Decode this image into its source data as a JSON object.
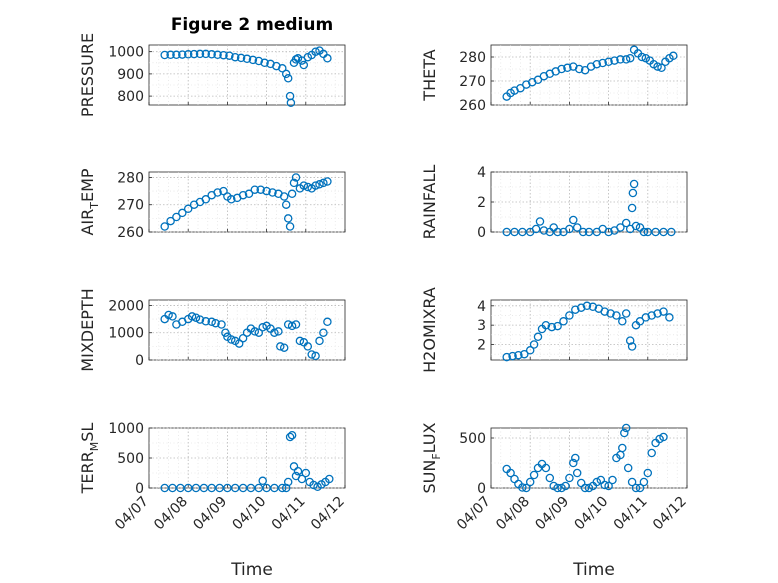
{
  "figure": {
    "title": "Figure 2 medium",
    "marker_color": "#0072BD",
    "x_label": "Time",
    "x_ticks": [
      "04/07",
      "04/08",
      "04/09",
      "04/10",
      "04/11",
      "04/12"
    ]
  },
  "chart_data": [
    {
      "type": "scatter",
      "ylabel": "PRESSURE",
      "ylabel_sub": "",
      "ylabel_rest": "",
      "xlim": [
        0,
        5
      ],
      "ylim": [
        760,
        1030
      ],
      "yticks": [
        800,
        900,
        1000
      ],
      "points": [
        [
          0.4,
          985
        ],
        [
          0.55,
          986
        ],
        [
          0.7,
          986
        ],
        [
          0.85,
          987
        ],
        [
          1.0,
          988
        ],
        [
          1.15,
          989
        ],
        [
          1.3,
          990
        ],
        [
          1.45,
          990
        ],
        [
          1.6,
          988
        ],
        [
          1.75,
          986
        ],
        [
          1.9,
          984
        ],
        [
          2.05,
          982
        ],
        [
          2.2,
          975
        ],
        [
          2.35,
          972
        ],
        [
          2.5,
          968
        ],
        [
          2.65,
          963
        ],
        [
          2.8,
          958
        ],
        [
          2.95,
          950
        ],
        [
          3.1,
          945
        ],
        [
          3.25,
          935
        ],
        [
          3.4,
          925
        ],
        [
          3.5,
          900
        ],
        [
          3.55,
          880
        ],
        [
          3.6,
          800
        ],
        [
          3.62,
          770
        ],
        [
          3.7,
          950
        ],
        [
          3.75,
          965
        ],
        [
          3.8,
          970
        ],
        [
          3.9,
          960
        ],
        [
          3.95,
          940
        ],
        [
          4.05,
          975
        ],
        [
          4.15,
          985
        ],
        [
          4.25,
          1000
        ],
        [
          4.35,
          1005
        ],
        [
          4.45,
          990
        ],
        [
          4.55,
          970
        ]
      ]
    },
    {
      "type": "scatter",
      "ylabel": "THETA",
      "ylabel_sub": "",
      "ylabel_rest": "",
      "xlim": [
        0,
        5
      ],
      "ylim": [
        260,
        285
      ],
      "yticks": [
        260,
        270,
        280
      ],
      "points": [
        [
          0.4,
          263.5
        ],
        [
          0.5,
          265
        ],
        [
          0.6,
          266
        ],
        [
          0.75,
          267
        ],
        [
          0.9,
          268.5
        ],
        [
          1.05,
          269.5
        ],
        [
          1.2,
          270.5
        ],
        [
          1.35,
          272
        ],
        [
          1.5,
          273
        ],
        [
          1.65,
          274
        ],
        [
          1.8,
          275
        ],
        [
          1.95,
          275.5
        ],
        [
          2.1,
          276
        ],
        [
          2.25,
          275
        ],
        [
          2.4,
          274.5
        ],
        [
          2.55,
          276
        ],
        [
          2.7,
          277
        ],
        [
          2.85,
          277.5
        ],
        [
          3.0,
          278
        ],
        [
          3.15,
          278.5
        ],
        [
          3.3,
          279
        ],
        [
          3.45,
          279
        ],
        [
          3.55,
          279.5
        ],
        [
          3.65,
          283
        ],
        [
          3.75,
          281.5
        ],
        [
          3.85,
          280
        ],
        [
          3.95,
          279.5
        ],
        [
          4.05,
          278.5
        ],
        [
          4.15,
          277
        ],
        [
          4.25,
          276
        ],
        [
          4.35,
          275.5
        ],
        [
          4.45,
          278
        ],
        [
          4.55,
          279.5
        ],
        [
          4.65,
          280.5
        ]
      ]
    },
    {
      "type": "scatter",
      "ylabel": "AIR",
      "ylabel_sub": "T",
      "ylabel_rest": "EMP",
      "xlim": [
        0,
        5
      ],
      "ylim": [
        260,
        282
      ],
      "yticks": [
        260,
        270,
        280
      ],
      "points": [
        [
          0.4,
          262
        ],
        [
          0.55,
          264
        ],
        [
          0.7,
          265.5
        ],
        [
          0.85,
          267
        ],
        [
          1.0,
          268.5
        ],
        [
          1.15,
          270
        ],
        [
          1.3,
          271
        ],
        [
          1.45,
          272
        ],
        [
          1.6,
          273.5
        ],
        [
          1.75,
          274.5
        ],
        [
          1.9,
          275
        ],
        [
          2.0,
          273
        ],
        [
          2.1,
          272
        ],
        [
          2.25,
          272.5
        ],
        [
          2.4,
          273.5
        ],
        [
          2.55,
          274
        ],
        [
          2.7,
          275.5
        ],
        [
          2.85,
          275.5
        ],
        [
          3.0,
          275
        ],
        [
          3.15,
          274.5
        ],
        [
          3.3,
          274
        ],
        [
          3.45,
          273
        ],
        [
          3.5,
          270
        ],
        [
          3.55,
          265
        ],
        [
          3.6,
          262
        ],
        [
          3.65,
          274
        ],
        [
          3.7,
          278
        ],
        [
          3.75,
          280
        ],
        [
          3.85,
          276
        ],
        [
          3.95,
          277
        ],
        [
          4.05,
          276.5
        ],
        [
          4.15,
          276
        ],
        [
          4.25,
          277
        ],
        [
          4.35,
          277.5
        ],
        [
          4.45,
          278
        ],
        [
          4.55,
          278.5
        ]
      ]
    },
    {
      "type": "scatter",
      "ylabel": "RAINFALL",
      "ylabel_sub": "",
      "ylabel_rest": "",
      "xlim": [
        0,
        5
      ],
      "ylim": [
        0,
        4
      ],
      "yticks": [
        0,
        2,
        4
      ],
      "points": [
        [
          0.4,
          0
        ],
        [
          0.6,
          0
        ],
        [
          0.8,
          0
        ],
        [
          1.0,
          0
        ],
        [
          1.15,
          0.2
        ],
        [
          1.25,
          0.7
        ],
        [
          1.35,
          0.1
        ],
        [
          1.5,
          0
        ],
        [
          1.6,
          0.3
        ],
        [
          1.7,
          0
        ],
        [
          1.85,
          0
        ],
        [
          2.0,
          0.2
        ],
        [
          2.1,
          0.8
        ],
        [
          2.2,
          0.3
        ],
        [
          2.35,
          0
        ],
        [
          2.5,
          0
        ],
        [
          2.7,
          0
        ],
        [
          2.85,
          0.2
        ],
        [
          3.0,
          0
        ],
        [
          3.15,
          0.1
        ],
        [
          3.3,
          0.3
        ],
        [
          3.45,
          0.6
        ],
        [
          3.55,
          0.2
        ],
        [
          3.6,
          1.6
        ],
        [
          3.62,
          2.6
        ],
        [
          3.65,
          3.2
        ],
        [
          3.7,
          0.4
        ],
        [
          3.8,
          0.3
        ],
        [
          3.9,
          0
        ],
        [
          4.0,
          0
        ],
        [
          4.2,
          0
        ],
        [
          4.4,
          0
        ],
        [
          4.6,
          0
        ]
      ]
    },
    {
      "type": "scatter",
      "ylabel": "MIXDEPTH",
      "ylabel_sub": "",
      "ylabel_rest": "",
      "xlim": [
        0,
        5
      ],
      "ylim": [
        0,
        2200
      ],
      "yticks": [
        0,
        1000,
        2000
      ],
      "points": [
        [
          0.4,
          1500
        ],
        [
          0.5,
          1650
        ],
        [
          0.6,
          1600
        ],
        [
          0.7,
          1300
        ],
        [
          0.85,
          1400
        ],
        [
          1.0,
          1500
        ],
        [
          1.1,
          1600
        ],
        [
          1.2,
          1550
        ],
        [
          1.3,
          1480
        ],
        [
          1.45,
          1420
        ],
        [
          1.6,
          1400
        ],
        [
          1.7,
          1350
        ],
        [
          1.85,
          1300
        ],
        [
          1.95,
          1000
        ],
        [
          2.0,
          850
        ],
        [
          2.1,
          750
        ],
        [
          2.2,
          700
        ],
        [
          2.3,
          600
        ],
        [
          2.4,
          800
        ],
        [
          2.5,
          1000
        ],
        [
          2.6,
          1150
        ],
        [
          2.7,
          1050
        ],
        [
          2.8,
          1000
        ],
        [
          2.9,
          1200
        ],
        [
          3.0,
          1250
        ],
        [
          3.1,
          1150
        ],
        [
          3.2,
          1000
        ],
        [
          3.3,
          1050
        ],
        [
          3.35,
          500
        ],
        [
          3.45,
          450
        ],
        [
          3.55,
          1300
        ],
        [
          3.65,
          1250
        ],
        [
          3.75,
          1300
        ],
        [
          3.85,
          700
        ],
        [
          3.95,
          650
        ],
        [
          4.05,
          500
        ],
        [
          4.15,
          200
        ],
        [
          4.25,
          150
        ],
        [
          4.35,
          700
        ],
        [
          4.45,
          1000
        ],
        [
          4.55,
          1400
        ]
      ]
    },
    {
      "type": "scatter",
      "ylabel": "H2OMIXRA",
      "ylabel_sub": "",
      "ylabel_rest": "",
      "xlim": [
        0,
        5
      ],
      "ylim": [
        1.2,
        4.3
      ],
      "yticks": [
        2,
        3,
        4
      ],
      "points": [
        [
          0.4,
          1.35
        ],
        [
          0.55,
          1.4
        ],
        [
          0.7,
          1.45
        ],
        [
          0.85,
          1.5
        ],
        [
          1.0,
          1.7
        ],
        [
          1.1,
          2.0
        ],
        [
          1.2,
          2.4
        ],
        [
          1.3,
          2.8
        ],
        [
          1.4,
          3.0
        ],
        [
          1.55,
          2.9
        ],
        [
          1.7,
          2.95
        ],
        [
          1.85,
          3.2
        ],
        [
          2.0,
          3.5
        ],
        [
          2.15,
          3.8
        ],
        [
          2.3,
          3.9
        ],
        [
          2.45,
          4.0
        ],
        [
          2.6,
          3.95
        ],
        [
          2.75,
          3.85
        ],
        [
          2.9,
          3.7
        ],
        [
          3.05,
          3.6
        ],
        [
          3.2,
          3.5
        ],
        [
          3.35,
          3.2
        ],
        [
          3.45,
          3.6
        ],
        [
          3.55,
          2.2
        ],
        [
          3.6,
          1.9
        ],
        [
          3.7,
          3.0
        ],
        [
          3.8,
          3.2
        ],
        [
          3.95,
          3.4
        ],
        [
          4.1,
          3.5
        ],
        [
          4.25,
          3.6
        ],
        [
          4.4,
          3.7
        ],
        [
          4.55,
          3.4
        ]
      ]
    },
    {
      "type": "scatter",
      "ylabel": "TERR",
      "ylabel_sub": "M",
      "ylabel_rest": "SL",
      "xlim": [
        0,
        5
      ],
      "ylim": [
        0,
        1000
      ],
      "yticks": [
        0,
        500,
        1000
      ],
      "points": [
        [
          0.4,
          0
        ],
        [
          0.6,
          0
        ],
        [
          0.8,
          0
        ],
        [
          1.0,
          0
        ],
        [
          1.2,
          0
        ],
        [
          1.4,
          0
        ],
        [
          1.6,
          0
        ],
        [
          1.8,
          0
        ],
        [
          2.0,
          0
        ],
        [
          2.2,
          0
        ],
        [
          2.4,
          0
        ],
        [
          2.6,
          0
        ],
        [
          2.8,
          0
        ],
        [
          2.9,
          120
        ],
        [
          3.0,
          0
        ],
        [
          3.2,
          0
        ],
        [
          3.4,
          0
        ],
        [
          3.5,
          0
        ],
        [
          3.55,
          100
        ],
        [
          3.6,
          850
        ],
        [
          3.65,
          880
        ],
        [
          3.7,
          360
        ],
        [
          3.75,
          200
        ],
        [
          3.8,
          280
        ],
        [
          3.9,
          150
        ],
        [
          4.0,
          250
        ],
        [
          4.1,
          100
        ],
        [
          4.2,
          50
        ],
        [
          4.3,
          20
        ],
        [
          4.4,
          60
        ],
        [
          4.5,
          100
        ],
        [
          4.6,
          150
        ]
      ]
    },
    {
      "type": "scatter",
      "ylabel": "SUN",
      "ylabel_sub": "F",
      "ylabel_rest": "LUX",
      "xlim": [
        0,
        5
      ],
      "ylim": [
        0,
        600
      ],
      "yticks": [
        0,
        500
      ],
      "points": [
        [
          0.4,
          190
        ],
        [
          0.5,
          150
        ],
        [
          0.6,
          90
        ],
        [
          0.7,
          40
        ],
        [
          0.8,
          5
        ],
        [
          0.9,
          0
        ],
        [
          1.0,
          60
        ],
        [
          1.1,
          130
        ],
        [
          1.2,
          200
        ],
        [
          1.3,
          240
        ],
        [
          1.4,
          200
        ],
        [
          1.5,
          100
        ],
        [
          1.6,
          20
        ],
        [
          1.7,
          0
        ],
        [
          1.8,
          0
        ],
        [
          1.9,
          20
        ],
        [
          2.0,
          100
        ],
        [
          2.1,
          250
        ],
        [
          2.15,
          300
        ],
        [
          2.2,
          150
        ],
        [
          2.3,
          50
        ],
        [
          2.4,
          0
        ],
        [
          2.5,
          0
        ],
        [
          2.6,
          20
        ],
        [
          2.7,
          60
        ],
        [
          2.8,
          80
        ],
        [
          2.9,
          30
        ],
        [
          3.0,
          20
        ],
        [
          3.1,
          80
        ],
        [
          3.2,
          300
        ],
        [
          3.3,
          330
        ],
        [
          3.35,
          400
        ],
        [
          3.4,
          550
        ],
        [
          3.45,
          600
        ],
        [
          3.5,
          200
        ],
        [
          3.6,
          60
        ],
        [
          3.7,
          0
        ],
        [
          3.8,
          0
        ],
        [
          3.9,
          60
        ],
        [
          4.0,
          150
        ],
        [
          4.1,
          350
        ],
        [
          4.2,
          450
        ],
        [
          4.3,
          490
        ],
        [
          4.4,
          510
        ]
      ]
    }
  ]
}
